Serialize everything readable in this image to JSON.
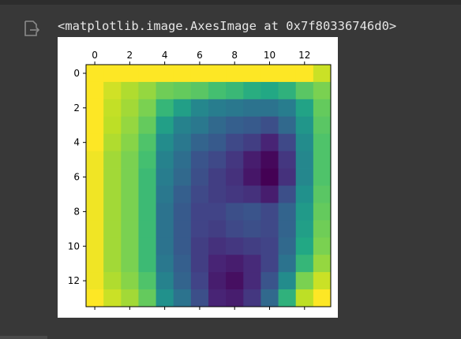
{
  "output": {
    "icon": "output-redirect-icon",
    "repr_text": "<matplotlib.image.AxesImage at 0x7f80336746d0>"
  },
  "colors": {
    "background": "#383838",
    "text": "#e6e6e6",
    "icon": "#8a8a8a"
  },
  "chart_data": {
    "type": "heatmap",
    "colormap": "viridis",
    "title": "",
    "xlabel": "",
    "ylabel": "",
    "x_ticks": [
      "0",
      "2",
      "4",
      "6",
      "8",
      "10",
      "12"
    ],
    "y_ticks": [
      "0",
      "2",
      "4",
      "6",
      "8",
      "10",
      "12"
    ],
    "x_tick_position": "top",
    "xlim": [
      -0.5,
      13.5
    ],
    "ylim": [
      13.5,
      -0.5
    ],
    "value_range": [
      0,
      1
    ],
    "grid": false,
    "values": [
      [
        1.0,
        1.0,
        1.0,
        1.0,
        1.0,
        1.0,
        1.0,
        1.0,
        1.0,
        1.0,
        1.0,
        1.0,
        1.0,
        0.92
      ],
      [
        1.0,
        0.93,
        0.88,
        0.84,
        0.78,
        0.76,
        0.74,
        0.7,
        0.67,
        0.62,
        0.6,
        0.64,
        0.74,
        0.8
      ],
      [
        1.0,
        0.91,
        0.86,
        0.8,
        0.66,
        0.56,
        0.46,
        0.42,
        0.4,
        0.38,
        0.38,
        0.42,
        0.58,
        0.76
      ],
      [
        1.0,
        0.9,
        0.84,
        0.76,
        0.56,
        0.44,
        0.4,
        0.34,
        0.3,
        0.28,
        0.24,
        0.34,
        0.52,
        0.74
      ],
      [
        1.0,
        0.88,
        0.82,
        0.72,
        0.48,
        0.4,
        0.32,
        0.28,
        0.22,
        0.18,
        0.1,
        0.22,
        0.48,
        0.72
      ],
      [
        0.98,
        0.86,
        0.8,
        0.7,
        0.44,
        0.36,
        0.26,
        0.22,
        0.16,
        0.08,
        0.02,
        0.16,
        0.46,
        0.72
      ],
      [
        0.98,
        0.86,
        0.8,
        0.68,
        0.42,
        0.34,
        0.24,
        0.18,
        0.14,
        0.06,
        0.0,
        0.14,
        0.46,
        0.72
      ],
      [
        0.98,
        0.86,
        0.8,
        0.68,
        0.4,
        0.3,
        0.22,
        0.18,
        0.16,
        0.14,
        0.08,
        0.24,
        0.5,
        0.74
      ],
      [
        0.98,
        0.86,
        0.8,
        0.68,
        0.38,
        0.28,
        0.2,
        0.2,
        0.24,
        0.26,
        0.22,
        0.32,
        0.54,
        0.76
      ],
      [
        0.98,
        0.86,
        0.8,
        0.68,
        0.38,
        0.28,
        0.2,
        0.18,
        0.22,
        0.24,
        0.22,
        0.32,
        0.56,
        0.78
      ],
      [
        0.98,
        0.86,
        0.8,
        0.68,
        0.38,
        0.28,
        0.18,
        0.14,
        0.16,
        0.18,
        0.2,
        0.34,
        0.6,
        0.8
      ],
      [
        0.98,
        0.86,
        0.8,
        0.68,
        0.4,
        0.3,
        0.18,
        0.1,
        0.08,
        0.12,
        0.2,
        0.38,
        0.66,
        0.84
      ],
      [
        0.98,
        0.88,
        0.82,
        0.72,
        0.44,
        0.32,
        0.2,
        0.08,
        0.04,
        0.12,
        0.26,
        0.48,
        0.8,
        0.92
      ],
      [
        1.0,
        0.92,
        0.86,
        0.76,
        0.5,
        0.38,
        0.24,
        0.1,
        0.08,
        0.16,
        0.34,
        0.64,
        0.9,
        1.0
      ]
    ]
  }
}
